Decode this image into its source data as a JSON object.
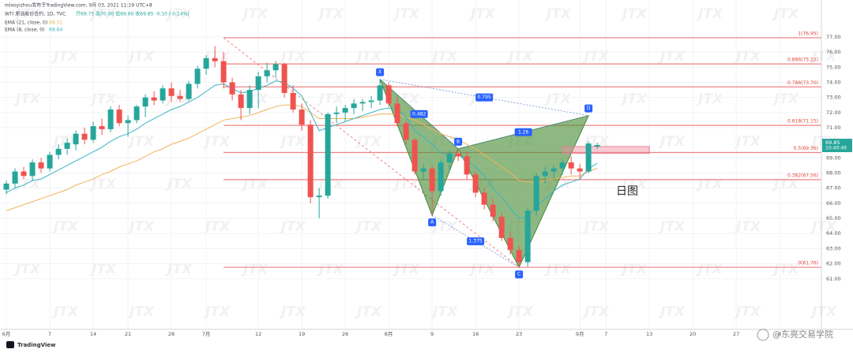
{
  "header": {
    "publisher": "mlxoyizhou发布于TradingView.com, 9月 03, 2021 11:19 UTC+8",
    "symbol": "WTI 原油差价合约, 1D, TVC",
    "ohlc": "开69.75 高70.00 低69.60 收69.85 -0.10 (-0.14%)"
  },
  "chart_data": {
    "type": "candlestick",
    "up_color": "#26a69a",
    "down_color": "#ef5350",
    "grid": true,
    "xlim": [
      -0.73,
      93.8
    ],
    "ylim": [
      57.65,
      79.45
    ],
    "yticks": [
      {
        "value": 61,
        "label": "61.00"
      },
      {
        "value": 62,
        "label": "62.00"
      },
      {
        "value": 63,
        "label": "63.00"
      },
      {
        "value": 64,
        "label": "64.00"
      },
      {
        "value": 65,
        "label": "65.00"
      },
      {
        "value": 66,
        "label": "66.00"
      },
      {
        "value": 67,
        "label": "67.00"
      },
      {
        "value": 68,
        "label": "68.00"
      },
      {
        "value": 69,
        "label": "69.00"
      },
      {
        "value": 71,
        "label": "71.00"
      },
      {
        "value": 72,
        "label": "72.00"
      },
      {
        "value": 73,
        "label": "73.00"
      },
      {
        "value": 74,
        "label": "74.00"
      },
      {
        "value": 75,
        "label": "75.00"
      },
      {
        "value": 76,
        "label": "76.00"
      },
      {
        "value": 77,
        "label": "77.00"
      }
    ],
    "xticks": [
      {
        "value": 0,
        "label": "6月"
      },
      {
        "value": 5,
        "label": "7"
      },
      {
        "value": 10,
        "label": "14"
      },
      {
        "value": 14,
        "label": "21"
      },
      {
        "value": 19,
        "label": "28"
      },
      {
        "value": 23,
        "label": "7月"
      },
      {
        "value": 29,
        "label": "12"
      },
      {
        "value": 34,
        "label": "19"
      },
      {
        "value": 39,
        "label": "26"
      },
      {
        "value": 44,
        "label": "8月"
      },
      {
        "value": 49,
        "label": "9"
      },
      {
        "value": 54,
        "label": "16"
      },
      {
        "value": 59,
        "label": "23"
      },
      {
        "value": 66,
        "label": "9月"
      },
      {
        "value": 69,
        "label": "7"
      },
      {
        "value": 74,
        "label": "13"
      },
      {
        "value": 79,
        "label": "20"
      },
      {
        "value": 84,
        "label": "27"
      },
      {
        "value": 89,
        "label": "4"
      }
    ],
    "candles": [
      {
        "open": 66.9,
        "high": 67.5,
        "low": 66.6,
        "close": 67.3
      },
      {
        "open": 67.3,
        "high": 68.3,
        "low": 67.0,
        "close": 68.1
      },
      {
        "open": 68.1,
        "high": 68.4,
        "low": 67.6,
        "close": 67.8
      },
      {
        "open": 67.8,
        "high": 68.9,
        "low": 67.5,
        "close": 68.7
      },
      {
        "open": 68.7,
        "high": 69.0,
        "low": 68.0,
        "close": 68.3
      },
      {
        "open": 68.3,
        "high": 69.4,
        "low": 68.1,
        "close": 69.2
      },
      {
        "open": 69.2,
        "high": 69.9,
        "low": 68.9,
        "close": 69.6
      },
      {
        "open": 69.6,
        "high": 70.3,
        "low": 69.2,
        "close": 70.0
      },
      {
        "open": 69.9,
        "high": 70.8,
        "low": 69.5,
        "close": 70.6
      },
      {
        "open": 70.6,
        "high": 71.0,
        "low": 69.9,
        "close": 70.2
      },
      {
        "open": 70.2,
        "high": 71.4,
        "low": 70.0,
        "close": 71.1
      },
      {
        "open": 71.1,
        "high": 71.6,
        "low": 70.5,
        "close": 70.9
      },
      {
        "open": 70.9,
        "high": 72.4,
        "low": 70.7,
        "close": 72.2
      },
      {
        "open": 72.2,
        "high": 72.5,
        "low": 71.1,
        "close": 71.3
      },
      {
        "open": 71.3,
        "high": 71.8,
        "low": 70.4,
        "close": 71.5
      },
      {
        "open": 71.5,
        "high": 72.5,
        "low": 71.3,
        "close": 72.4
      },
      {
        "open": 72.4,
        "high": 73.2,
        "low": 71.7,
        "close": 73.0
      },
      {
        "open": 73.0,
        "high": 73.4,
        "low": 72.5,
        "close": 72.8
      },
      {
        "open": 72.8,
        "high": 73.8,
        "low": 72.6,
        "close": 73.6
      },
      {
        "open": 73.6,
        "high": 74.0,
        "low": 72.7,
        "close": 73.1
      },
      {
        "open": 73.1,
        "high": 73.5,
        "low": 72.7,
        "close": 72.9
      },
      {
        "open": 72.9,
        "high": 74.1,
        "low": 72.8,
        "close": 73.9
      },
      {
        "open": 73.9,
        "high": 75.1,
        "low": 73.6,
        "close": 74.9
      },
      {
        "open": 74.9,
        "high": 75.8,
        "low": 74.5,
        "close": 75.6
      },
      {
        "open": 75.6,
        "high": 76.4,
        "low": 75.0,
        "close": 75.4
      },
      {
        "open": 75.4,
        "high": 76.0,
        "low": 73.6,
        "close": 74.0
      },
      {
        "open": 74.0,
        "high": 74.3,
        "low": 72.8,
        "close": 73.2
      },
      {
        "open": 73.2,
        "high": 73.5,
        "low": 71.5,
        "close": 72.3
      },
      {
        "open": 72.3,
        "high": 73.8,
        "low": 71.9,
        "close": 73.5
      },
      {
        "open": 73.5,
        "high": 74.7,
        "low": 72.3,
        "close": 74.4
      },
      {
        "open": 74.4,
        "high": 75.3,
        "low": 74.0,
        "close": 74.8
      },
      {
        "open": 74.8,
        "high": 75.4,
        "low": 74.3,
        "close": 75.2
      },
      {
        "open": 75.2,
        "high": 75.3,
        "low": 73.0,
        "close": 73.3
      },
      {
        "open": 73.3,
        "high": 73.8,
        "low": 72.0,
        "close": 72.2
      },
      {
        "open": 72.2,
        "high": 72.6,
        "low": 70.8,
        "close": 71.2
      },
      {
        "open": 71.2,
        "high": 71.5,
        "low": 66.0,
        "close": 66.4
      },
      {
        "open": 66.4,
        "high": 67.0,
        "low": 65.0,
        "close": 66.5
      },
      {
        "open": 66.5,
        "high": 72.0,
        "low": 66.3,
        "close": 71.9
      },
      {
        "open": 71.9,
        "high": 72.4,
        "low": 71.3,
        "close": 72.0
      },
      {
        "open": 72.0,
        "high": 72.5,
        "low": 71.4,
        "close": 72.3
      },
      {
        "open": 72.3,
        "high": 72.9,
        "low": 71.9,
        "close": 72.6
      },
      {
        "open": 72.6,
        "high": 72.9,
        "low": 72.1,
        "close": 72.7
      },
      {
        "open": 72.7,
        "high": 73.1,
        "low": 72.3,
        "close": 72.8
      },
      {
        "open": 72.8,
        "high": 74.2,
        "low": 72.5,
        "close": 73.8
      },
      {
        "open": 73.8,
        "high": 74.0,
        "low": 72.4,
        "close": 72.6
      },
      {
        "open": 72.6,
        "high": 73.0,
        "low": 71.1,
        "close": 71.3
      },
      {
        "open": 71.3,
        "high": 71.5,
        "low": 69.9,
        "close": 70.2
      },
      {
        "open": 70.2,
        "high": 70.3,
        "low": 67.9,
        "close": 68.1
      },
      {
        "open": 68.1,
        "high": 68.6,
        "low": 67.5,
        "close": 68.3
      },
      {
        "open": 68.3,
        "high": 68.5,
        "low": 65.2,
        "close": 66.8
      },
      {
        "open": 66.8,
        "high": 68.9,
        "low": 66.5,
        "close": 68.7
      },
      {
        "open": 68.7,
        "high": 69.5,
        "low": 68.2,
        "close": 69.3
      },
      {
        "open": 69.3,
        "high": 69.6,
        "low": 68.8,
        "close": 69.1
      },
      {
        "open": 69.1,
        "high": 69.4,
        "low": 67.6,
        "close": 67.9
      },
      {
        "open": 67.9,
        "high": 68.1,
        "low": 66.4,
        "close": 66.7
      },
      {
        "open": 66.7,
        "high": 67.0,
        "low": 65.6,
        "close": 65.9
      },
      {
        "open": 65.9,
        "high": 66.3,
        "low": 64.8,
        "close": 65.1
      },
      {
        "open": 65.1,
        "high": 65.4,
        "low": 63.5,
        "close": 63.7
      },
      {
        "open": 63.7,
        "high": 64.1,
        "low": 62.6,
        "close": 62.9
      },
      {
        "open": 62.9,
        "high": 63.2,
        "low": 61.76,
        "close": 62.1
      },
      {
        "open": 62.1,
        "high": 65.7,
        "low": 61.8,
        "close": 65.5
      },
      {
        "open": 65.5,
        "high": 68.0,
        "low": 65.2,
        "close": 67.8
      },
      {
        "open": 67.8,
        "high": 68.4,
        "low": 67.3,
        "close": 68.1
      },
      {
        "open": 68.1,
        "high": 68.5,
        "low": 67.6,
        "close": 68.3
      },
      {
        "open": 68.3,
        "high": 68.9,
        "low": 67.9,
        "close": 68.7
      },
      {
        "open": 68.7,
        "high": 69.1,
        "low": 67.9,
        "close": 68.3
      },
      {
        "open": 68.3,
        "high": 68.6,
        "low": 67.6,
        "close": 68.1
      },
      {
        "open": 68.1,
        "high": 70.1,
        "low": 68.0,
        "close": 69.95
      },
      {
        "open": 69.75,
        "high": 70.0,
        "low": 69.6,
        "close": 69.85
      }
    ],
    "series": [
      {
        "name": "EMA (21, close, 0)",
        "last": 68.31,
        "color": "#f0b35a",
        "values": [
          65.5,
          65.7,
          65.9,
          66.1,
          66.3,
          66.5,
          66.7,
          66.9,
          67.2,
          67.4,
          67.6,
          67.9,
          68.1,
          68.4,
          68.6,
          68.8,
          69.1,
          69.4,
          69.6,
          69.9,
          70.1,
          70.3,
          70.6,
          70.9,
          71.2,
          71.5,
          71.6,
          71.7,
          71.8,
          72.0,
          72.2,
          72.4,
          72.5,
          72.5,
          72.4,
          72.0,
          71.6,
          71.6,
          71.6,
          71.6,
          71.6,
          71.7,
          71.8,
          71.9,
          71.9,
          71.9,
          71.7,
          71.5,
          71.2,
          70.9,
          70.6,
          70.4,
          70.2,
          69.9,
          69.6,
          69.2,
          68.8,
          68.4,
          68.0,
          67.5,
          67.4,
          67.4,
          67.5,
          67.6,
          67.7,
          67.8,
          67.8,
          68.1,
          68.31
        ]
      },
      {
        "name": "EMA (8, close, 0)",
        "last": 68.64,
        "color": "#3bb3c3",
        "values": [
          66.7,
          67.0,
          67.2,
          67.5,
          67.6,
          67.9,
          68.2,
          68.5,
          68.8,
          69.1,
          69.4,
          69.7,
          70.1,
          70.4,
          70.6,
          70.9,
          71.3,
          71.6,
          71.9,
          72.2,
          72.4,
          72.7,
          73.0,
          73.4,
          73.8,
          73.9,
          73.6,
          73.3,
          73.4,
          73.6,
          73.8,
          74.1,
          74.0,
          73.6,
          73.1,
          72.0,
          70.8,
          71.0,
          71.2,
          71.4,
          71.6,
          71.8,
          72.0,
          72.2,
          72.3,
          72.2,
          71.7,
          70.8,
          70.4,
          69.9,
          69.3,
          69.2,
          69.2,
          68.8,
          68.4,
          67.8,
          67.0,
          66.4,
          65.7,
          65.0,
          65.1,
          65.8,
          66.3,
          66.8,
          67.2,
          67.4,
          67.6,
          68.3,
          68.64
        ]
      }
    ],
    "fib": {
      "start": 25,
      "levels": [
        {
          "value": 76.95,
          "label": "1(76.95)"
        },
        {
          "value": 75.22,
          "label": "0.886(75.22)"
        },
        {
          "value": 73.7,
          "label": "0.786(73.70)"
        },
        {
          "value": 71.15,
          "label": "0.618(71.15)"
        },
        {
          "value": 69.36,
          "label": "0.5(69.36)"
        },
        {
          "value": 67.56,
          "label": "0.382(67.56)"
        },
        {
          "value": 61.76,
          "label": "0(61.76)"
        }
      ]
    },
    "pattern": {
      "points": [
        {
          "label": "X",
          "x": 43,
          "y": 74.2
        },
        {
          "label": "A",
          "x": 49,
          "y": 65.2
        },
        {
          "label": "B",
          "x": 52,
          "y": 69.6
        },
        {
          "label": "C",
          "x": 59,
          "y": 61.76
        },
        {
          "label": "D",
          "x": 67,
          "y": 71.8
        }
      ],
      "ratios": [
        0.482,
        0.795,
        1.26,
        1.375
      ]
    },
    "zone": {
      "x": [
        64,
        74
      ],
      "y": [
        69.3,
        69.75
      ]
    },
    "annotation": "日图",
    "last_price": 69.85,
    "last_time": "10:40:49",
    "watermark": "JTX",
    "footer_logo": "TradingView",
    "footer_mark": "@东亮交易学院"
  }
}
